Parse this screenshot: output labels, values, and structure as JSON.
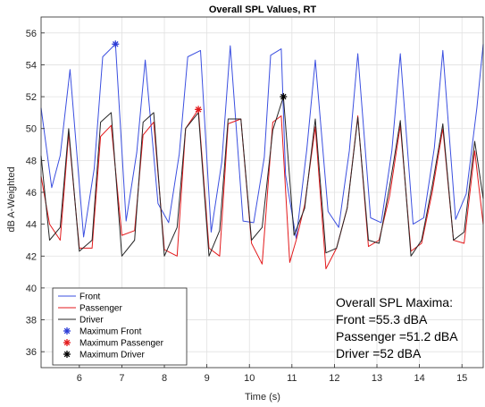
{
  "chart_data": {
    "type": "line",
    "title": "Overall SPL Values, RT",
    "xlabel": "Time (s)",
    "ylabel": "dB A-Weighted",
    "xlim": [
      5.1,
      15.5
    ],
    "ylim": [
      35,
      57
    ],
    "xticks": [
      6,
      7,
      8,
      9,
      10,
      11,
      12,
      13,
      14,
      15
    ],
    "yticks": [
      36,
      38,
      40,
      42,
      44,
      46,
      48,
      50,
      52,
      54,
      56
    ],
    "grid": true,
    "legend_position": "bottom-left",
    "series": [
      {
        "name": "Front",
        "color": "#3b4fe0",
        "x": [
          5.1,
          5.35,
          5.55,
          5.78,
          6.1,
          6.35,
          6.55,
          6.85,
          7.1,
          7.35,
          7.55,
          7.85,
          8.1,
          8.35,
          8.55,
          8.85,
          9.1,
          9.35,
          9.55,
          9.85,
          10.1,
          10.35,
          10.5,
          10.75,
          10.85,
          11.1,
          11.35,
          11.55,
          11.85,
          12.1,
          12.35,
          12.55,
          12.85,
          13.1,
          13.35,
          13.55,
          13.85,
          14.1,
          14.35,
          14.55,
          14.85,
          15.1,
          15.35,
          15.5
        ],
        "y": [
          51.3,
          46.3,
          48.3,
          53.7,
          43.2,
          47.5,
          54.5,
          55.3,
          44.2,
          48.5,
          54.3,
          45.3,
          44.1,
          48.4,
          54.5,
          54.9,
          43.5,
          47.9,
          55.2,
          44.2,
          44.1,
          48.2,
          54.6,
          55.0,
          47.1,
          43.1,
          48.7,
          54.3,
          44.8,
          43.8,
          48.6,
          54.7,
          44.4,
          44.1,
          48.6,
          54.7,
          44.0,
          44.4,
          48.8,
          54.9,
          44.3,
          45.9,
          51.3,
          55.3
        ]
      },
      {
        "name": "Passenger",
        "color": "#e31a1c",
        "x": [
          5.1,
          5.3,
          5.55,
          5.75,
          6.0,
          6.3,
          6.5,
          6.75,
          7.0,
          7.3,
          7.5,
          7.75,
          8.0,
          8.3,
          8.5,
          8.8,
          9.05,
          9.3,
          9.5,
          9.8,
          10.05,
          10.3,
          10.55,
          10.75,
          10.95,
          11.1,
          11.3,
          11.55,
          11.8,
          12.05,
          12.3,
          12.55,
          12.8,
          13.05,
          13.3,
          13.55,
          13.8,
          14.05,
          14.3,
          14.55,
          14.8,
          15.05,
          15.3,
          15.5
        ],
        "y": [
          47.0,
          44.0,
          43.0,
          49.7,
          42.5,
          42.5,
          49.5,
          50.2,
          43.3,
          43.6,
          49.6,
          50.4,
          42.4,
          42.0,
          50.0,
          51.2,
          42.5,
          42.0,
          50.3,
          50.6,
          42.8,
          41.5,
          50.4,
          50.8,
          41.6,
          43.0,
          45.2,
          50.1,
          41.2,
          42.5,
          45.0,
          50.8,
          42.6,
          43.0,
          45.8,
          50.2,
          42.3,
          42.8,
          46.0,
          50.0,
          43.0,
          42.8,
          48.6,
          44.0
        ]
      },
      {
        "name": "Driver",
        "color": "#262626",
        "x": [
          5.1,
          5.3,
          5.55,
          5.75,
          6.0,
          6.3,
          6.5,
          6.75,
          7.0,
          7.3,
          7.5,
          7.75,
          8.0,
          8.3,
          8.5,
          8.8,
          9.05,
          9.3,
          9.5,
          9.8,
          10.05,
          10.3,
          10.55,
          10.8,
          11.05,
          11.3,
          11.55,
          11.8,
          12.05,
          12.3,
          12.55,
          12.8,
          13.05,
          13.3,
          13.55,
          13.8,
          14.05,
          14.3,
          14.55,
          14.8,
          15.05,
          15.3,
          15.5
        ],
        "y": [
          48.3,
          43.0,
          43.8,
          50.0,
          42.3,
          43.0,
          50.4,
          51.0,
          42.0,
          43.0,
          50.4,
          51.0,
          42.0,
          43.8,
          50.0,
          51.0,
          42.0,
          43.6,
          50.6,
          50.6,
          43.0,
          43.8,
          49.9,
          52.0,
          43.3,
          45.0,
          50.6,
          42.2,
          42.5,
          45.0,
          50.7,
          43.0,
          42.8,
          46.4,
          50.5,
          42.0,
          43.0,
          46.4,
          50.3,
          43.0,
          43.5,
          49.2,
          45.6
        ]
      }
    ],
    "maxima": [
      {
        "name": "Maximum Front",
        "x": 6.85,
        "y": 55.3,
        "color": "#2b3bd6"
      },
      {
        "name": "Maximum Passenger",
        "x": 8.8,
        "y": 51.2,
        "color": "#e31a1c"
      },
      {
        "name": "Maximum Driver",
        "x": 10.8,
        "y": 52.0,
        "color": "#000000"
      }
    ],
    "annotation": [
      "Overall SPL Maxima:",
      "Front =55.3 dBA",
      "Passenger =51.2 dBA",
      "Driver =52 dBA"
    ]
  }
}
